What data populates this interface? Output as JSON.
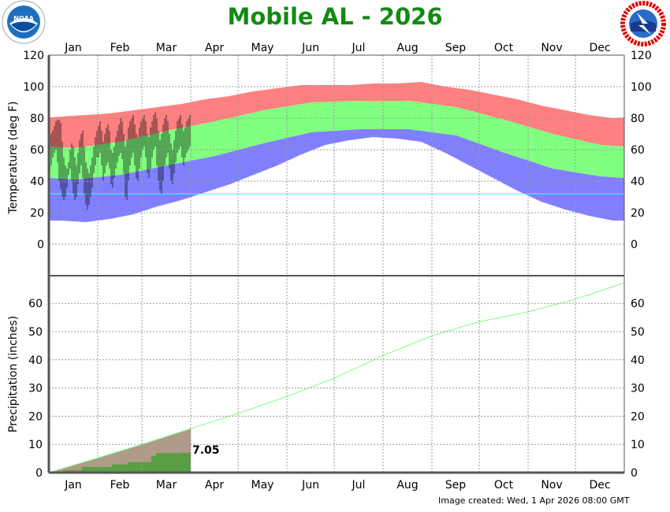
{
  "title": "Mobile AL - 2026",
  "footer": "Image created: Wed, 1 Apr 2026 08:00 GMT",
  "logos": {
    "left": "NOAA",
    "right": "NATIONAL WEATHER SERVICE"
  },
  "colors": {
    "record_high": "#ff8080",
    "normal_range": "#80ff80",
    "record_low": "#8080ff",
    "observed": "#000000",
    "freezing_line": "#40ffff",
    "precip_normal_area": "#b09a88",
    "precip_normal_line": "#80ff80",
    "precip_observed": "#5a9e44",
    "title": "#138a13"
  },
  "chart_data": [
    {
      "type": "bar",
      "ylabel": "Temperature (deg F)",
      "ylim": [
        -10,
        120
      ],
      "yticks": [
        "120",
        "100",
        "80",
        "60",
        "40",
        "20",
        "0"
      ],
      "months": [
        "Jan",
        "Feb",
        "Mar",
        "Apr",
        "May",
        "Jun",
        "Jul",
        "Aug",
        "Sep",
        "Oct",
        "Nov",
        "Dec"
      ],
      "grid": true,
      "freezing_line": 32,
      "normal_high_midmonth": [
        61,
        65,
        72,
        78,
        85,
        90,
        91,
        91,
        87,
        79,
        70,
        63
      ],
      "normal_low_midmonth": [
        41,
        44,
        50,
        56,
        64,
        71,
        73,
        73,
        69,
        58,
        48,
        43
      ],
      "record_high_semimonthly": [
        81,
        82,
        83,
        85,
        87,
        89,
        92,
        94,
        97,
        99,
        101,
        101,
        101,
        102,
        102,
        103,
        100,
        98,
        95,
        92,
        88,
        85,
        82,
        80
      ],
      "record_low_semimonthly": [
        15,
        14,
        16,
        19,
        24,
        28,
        33,
        38,
        44,
        50,
        57,
        63,
        66,
        68,
        67,
        65,
        58,
        50,
        42,
        34,
        27,
        22,
        18,
        15
      ],
      "observed_high": [
        68,
        70,
        72,
        75,
        78,
        79,
        79,
        77,
        65,
        55,
        50,
        48,
        52,
        60,
        64,
        62,
        55,
        50,
        58,
        66,
        70,
        72,
        62,
        52,
        48,
        45,
        50,
        55,
        62,
        68,
        72,
        75,
        78,
        72,
        65,
        70,
        74,
        76,
        72,
        60,
        58,
        62,
        68,
        72,
        76,
        80,
        78,
        70,
        62,
        66,
        74,
        78,
        80,
        82,
        76,
        70,
        68,
        74,
        78,
        80,
        82,
        78,
        70,
        68,
        74,
        78,
        82,
        84,
        80,
        72,
        66,
        70,
        76,
        80,
        82,
        78,
        70,
        64,
        60,
        66,
        72,
        78,
        80,
        82,
        76,
        72,
        74,
        78,
        80,
        82
      ],
      "observed_low": [
        45,
        50,
        55,
        58,
        60,
        52,
        40,
        35,
        30,
        28,
        30,
        36,
        44,
        48,
        40,
        32,
        28,
        30,
        38,
        45,
        50,
        42,
        32,
        25,
        22,
        25,
        30,
        36,
        45,
        50,
        55,
        55,
        58,
        50,
        40,
        45,
        50,
        52,
        48,
        38,
        36,
        42,
        48,
        52,
        56,
        58,
        54,
        45,
        30,
        28,
        40,
        50,
        55,
        58,
        50,
        42,
        40,
        48,
        55,
        60,
        62,
        55,
        45,
        42,
        48,
        55,
        60,
        62,
        50,
        40,
        34,
        32,
        40,
        50,
        55,
        58,
        48,
        40,
        38,
        45,
        52,
        58,
        60,
        62,
        55,
        50,
        55,
        58,
        60,
        62
      ]
    },
    {
      "type": "area",
      "ylabel": "Precipitation (inches)",
      "ylim": [
        0,
        70
      ],
      "yticks": [
        "60",
        "50",
        "40",
        "30",
        "20",
        "10",
        "0"
      ],
      "months": [
        "Jan",
        "Feb",
        "Mar",
        "Apr",
        "May",
        "Jun",
        "Jul",
        "Aug",
        "Sep",
        "Oct",
        "Nov",
        "Dec"
      ],
      "normal_cumulative_month_end": [
        5.2,
        10.0,
        15.6,
        21.0,
        27.0,
        33.5,
        41.5,
        48.5,
        53.5,
        57.0,
        61.5,
        67.3
      ],
      "observed_cumulative_steps": [
        [
          "01-01",
          0.0
        ],
        [
          "01-10",
          0.8
        ],
        [
          "01-22",
          2.0
        ],
        [
          "02-10",
          2.9
        ],
        [
          "02-20",
          3.7
        ],
        [
          "03-07",
          5.9
        ],
        [
          "03-10",
          6.9
        ],
        [
          "03-25",
          7.05
        ]
      ],
      "observed_end_date": "03-31",
      "observed_total_label": "7.05"
    }
  ]
}
